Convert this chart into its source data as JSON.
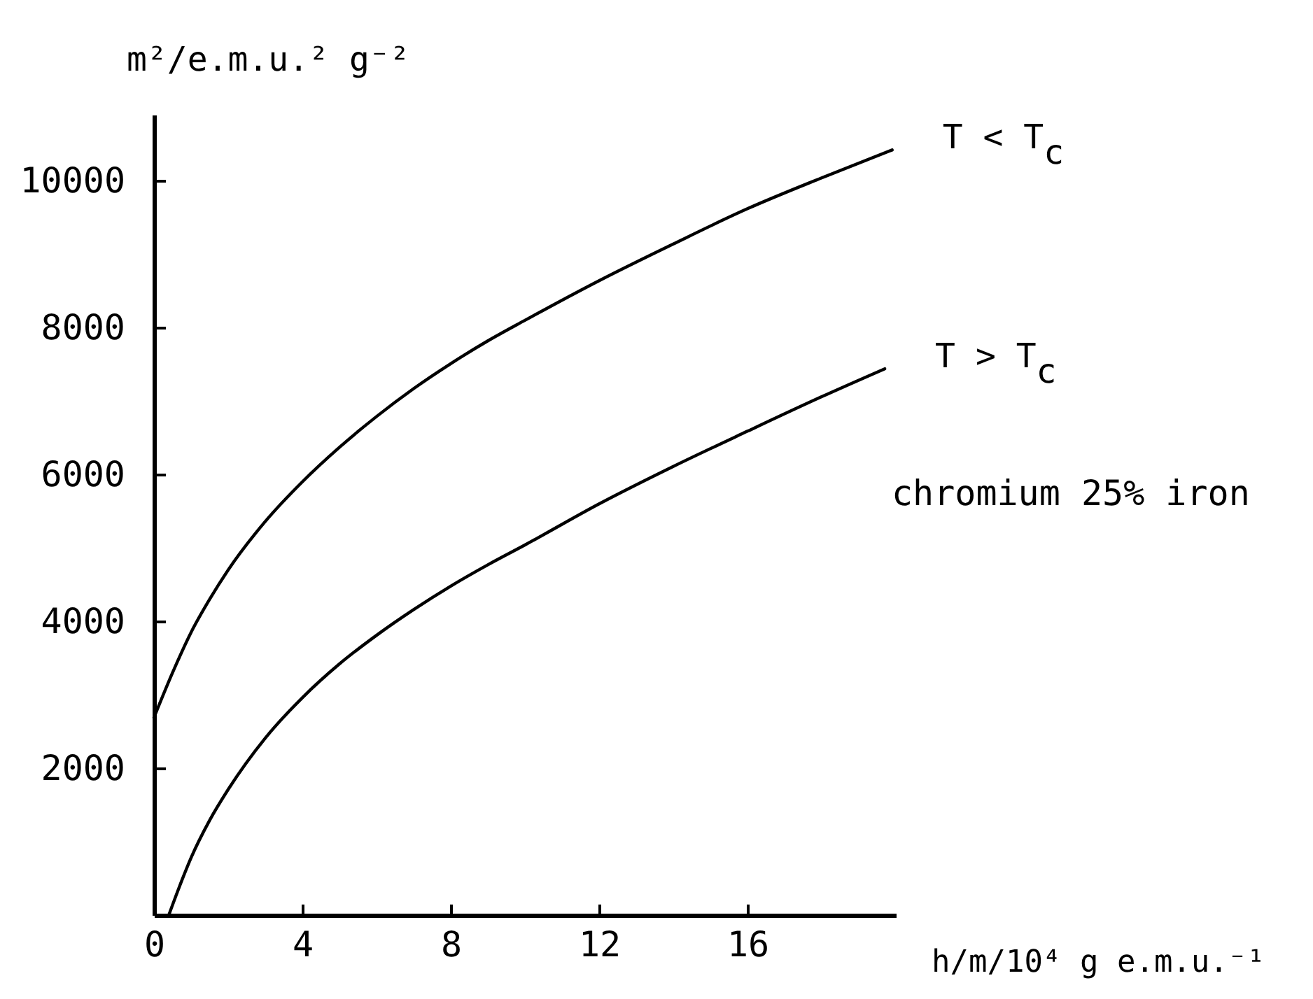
{
  "chart_data": {
    "type": "line",
    "xlabel": "h/m/10⁴ g e.m.u.⁻¹",
    "ylabel": "m²/e.m.u.² g⁻²",
    "annotations": [
      "chromium 25% iron"
    ],
    "series": [
      {
        "name": "T < T$_{c}$",
        "color": "#000000",
        "x": [
          0,
          0.5,
          1,
          1.5,
          2,
          3,
          4,
          5,
          6,
          7,
          8,
          9,
          10,
          12,
          14,
          16,
          18,
          19.9
        ],
        "values": [
          2690,
          3300,
          3850,
          4300,
          4700,
          5360,
          5900,
          6370,
          6790,
          7170,
          7510,
          7820,
          8100,
          8640,
          9140,
          9620,
          10040,
          10420
        ]
      },
      {
        "name": "T > T$_{c}$",
        "color": "#000000",
        "x": [
          0.4,
          0.75,
          1,
          1.5,
          2,
          3,
          4,
          5,
          6,
          7,
          8,
          9,
          10,
          12,
          14,
          16,
          18,
          19.7
        ],
        "values": [
          0,
          470,
          780,
          1290,
          1710,
          2410,
          2960,
          3420,
          3810,
          4160,
          4480,
          4770,
          5040,
          5600,
          6110,
          6590,
          7060,
          7440
        ]
      }
    ],
    "xlim": [
      0,
      20
    ],
    "ylim": [
      0,
      10900
    ],
    "xticks": [
      0,
      4,
      8,
      12,
      16
    ],
    "yticks": [
      2000,
      4000,
      6000,
      8000,
      10000
    ],
    "grid": false
  }
}
